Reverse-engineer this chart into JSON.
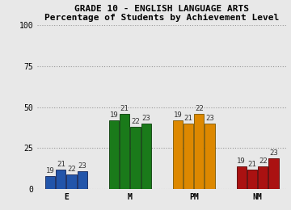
{
  "title_line1": "GRADE 10 - ENGLISH LANGUAGE ARTS",
  "title_line2": "Percentage of Students by Achievement Level",
  "categories": [
    "E",
    "M",
    "PM",
    "NM"
  ],
  "years": [
    "19",
    "21",
    "22",
    "23"
  ],
  "values": {
    "E": [
      8,
      12,
      9,
      11
    ],
    "M": [
      42,
      46,
      38,
      40
    ],
    "PM": [
      42,
      40,
      46,
      40
    ],
    "NM": [
      14,
      12,
      14,
      19
    ]
  },
  "bar_colors": {
    "E": "#2255aa",
    "M": "#1a7a1a",
    "PM": "#dd8800",
    "NM": "#aa1111"
  },
  "bar_edge_colors": {
    "E": "#112255",
    "M": "#0a3d0a",
    "PM": "#7a5500",
    "NM": "#550000"
  },
  "ylim": [
    0,
    100
  ],
  "yticks": [
    0,
    25,
    50,
    75,
    100
  ],
  "background_color": "#e8e8e8",
  "plot_bg_color": "#e8e8e8",
  "grid_color": "#999999",
  "title_fontsize": 8,
  "tick_fontsize": 7,
  "bar_label_fontsize": 6.5,
  "bar_width": 0.17,
  "bar_spacing": 0.185
}
